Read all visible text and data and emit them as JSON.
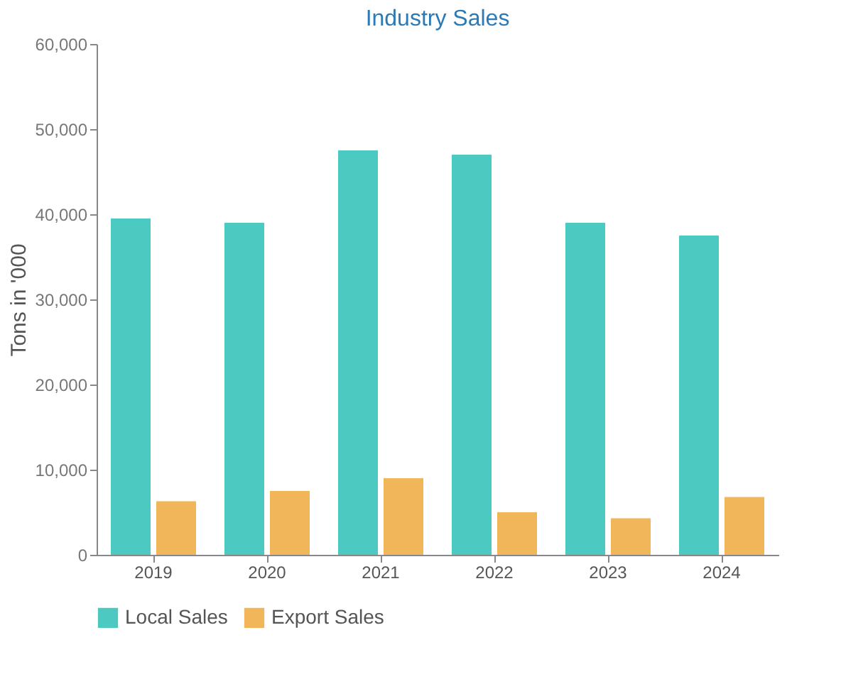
{
  "chart_data": {
    "type": "bar",
    "title": "Industry Sales",
    "ylabel": "Tons in '000",
    "categories": [
      "2019",
      "2020",
      "2021",
      "2022",
      "2023",
      "2024"
    ],
    "series": [
      {
        "name": "Local Sales",
        "color": "#4cc9c0",
        "values": [
          39500,
          39000,
          47500,
          47000,
          39000,
          37500
        ]
      },
      {
        "name": "Export Sales",
        "color": "#f2b65a",
        "values": [
          6300,
          7500,
          9000,
          5000,
          4300,
          6800
        ]
      }
    ],
    "ylim": [
      0,
      60000
    ],
    "yticks": [
      0,
      {
        "value": 10000,
        "label": "10,000"
      },
      {
        "value": 20000,
        "label": "20,000"
      },
      {
        "value": 30000,
        "label": "30,000"
      },
      {
        "value": 40000,
        "label": "40,000"
      },
      {
        "value": 50000,
        "label": "50,000"
      },
      {
        "value": 60000,
        "label": "60,000"
      }
    ],
    "grid": false,
    "legend": "bottom"
  }
}
